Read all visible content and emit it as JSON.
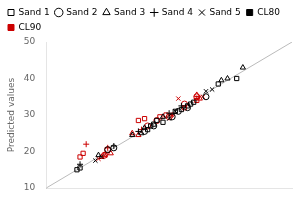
{
  "chart_data": {
    "type": "scatter",
    "ylabel": "Predicted values",
    "xlim": [
      10,
      50
    ],
    "ylim": [
      10,
      50
    ],
    "xticks": [
      10,
      20,
      30,
      40,
      50
    ],
    "yticks": [
      10,
      20,
      30,
      40,
      50
    ],
    "grid": false,
    "legend": "upper left",
    "tick_labels": "y",
    "reference_line": {
      "points": [
        [
          10,
          10
        ],
        [
          50,
          50
        ]
      ],
      "color": "#bbbbbb"
    },
    "groups": [
      {
        "name": "CL80",
        "color": "#000000",
        "series": [
          {
            "name": "Sand 1",
            "marker": "square",
            "points": [
              [
                15.0,
                15.0
              ],
              [
                15.5,
                15.5
              ],
              [
                26.5,
                26.0
              ],
              [
                27.0,
                27.0
              ],
              [
                27.5,
                27.5
              ],
              [
                28.0,
                28.5
              ],
              [
                29.0,
                28.0
              ],
              [
                31.0,
                31.0
              ],
              [
                32.0,
                31.5
              ],
              [
                33.0,
                32.5
              ],
              [
                33.5,
                33.0
              ],
              [
                34.0,
                33.5
              ],
              [
                38.0,
                38.5
              ],
              [
                41.0,
                40.0
              ]
            ]
          },
          {
            "name": "Sand 2",
            "marker": "circle",
            "points": [
              [
                20.0,
                20.5
              ],
              [
                21.0,
                21.0
              ],
              [
                26.0,
                25.5
              ],
              [
                27.5,
                27.0
              ],
              [
                30.5,
                29.5
              ],
              [
                31.5,
                31.0
              ],
              [
                33.0,
                32.0
              ],
              [
                36.0,
                35.0
              ]
            ]
          },
          {
            "name": "Sand 3",
            "marker": "triangle",
            "points": [
              [
                18.5,
                19.0
              ],
              [
                24.0,
                24.5
              ],
              [
                25.5,
                25.0
              ],
              [
                26.0,
                26.5
              ],
              [
                29.0,
                29.5
              ],
              [
                38.5,
                39.5
              ],
              [
                39.5,
                40.0
              ],
              [
                42.0,
                43.0
              ]
            ]
          },
          {
            "name": "Sand 4",
            "marker": "plus",
            "points": [
              [
                15.5,
                16.5
              ],
              [
                21.0,
                21.5
              ],
              [
                25.0,
                25.5
              ],
              [
                30.0,
                30.5
              ],
              [
                32.0,
                32.5
              ]
            ]
          },
          {
            "name": "Sand 5",
            "marker": "x",
            "points": [
              [
                18.0,
                17.5
              ],
              [
                19.0,
                18.5
              ],
              [
                30.0,
                29.0
              ],
              [
                31.0,
                31.0
              ],
              [
                36.0,
                36.5
              ],
              [
                37.0,
                37.0
              ]
            ]
          }
        ]
      },
      {
        "name": "CL90",
        "color": "#cc0000",
        "series": [
          {
            "name": "Sand 1",
            "marker": "square",
            "points": [
              [
                15.5,
                18.5
              ],
              [
                16.0,
                19.5
              ],
              [
                25.0,
                28.5
              ],
              [
                26.0,
                29.0
              ],
              [
                28.5,
                29.5
              ],
              [
                29.5,
                30.0
              ],
              [
                32.5,
                32.0
              ],
              [
                34.5,
                34.0
              ]
            ]
          },
          {
            "name": "Sand 2",
            "marker": "circle",
            "points": [
              [
                19.5,
                19.0
              ],
              [
                20.0,
                20.5
              ],
              [
                26.5,
                27.0
              ],
              [
                28.0,
                28.5
              ],
              [
                30.0,
                29.5
              ],
              [
                32.5,
                33.0
              ],
              [
                34.5,
                35.0
              ]
            ]
          },
          {
            "name": "Sand 3",
            "marker": "triangle",
            "points": [
              [
                19.0,
                18.5
              ],
              [
                19.5,
                19.0
              ],
              [
                20.5,
                19.5
              ],
              [
                24.0,
                25.0
              ],
              [
                25.0,
                24.5
              ],
              [
                34.5,
                35.5
              ],
              [
                35.0,
                34.5
              ]
            ]
          },
          {
            "name": "Sand 4",
            "marker": "plus",
            "points": [
              [
                16.5,
                22.0
              ],
              [
                20.0,
                21.0
              ],
              [
                25.5,
                26.0
              ],
              [
                30.5,
                30.0
              ],
              [
                34.5,
                34.5
              ]
            ]
          },
          {
            "name": "Sand 5",
            "marker": "x",
            "points": [
              [
                18.5,
                18.0
              ],
              [
                19.5,
                19.0
              ],
              [
                30.5,
                30.0
              ],
              [
                31.5,
                34.5
              ],
              [
                35.5,
                35.0
              ]
            ]
          }
        ]
      }
    ]
  }
}
